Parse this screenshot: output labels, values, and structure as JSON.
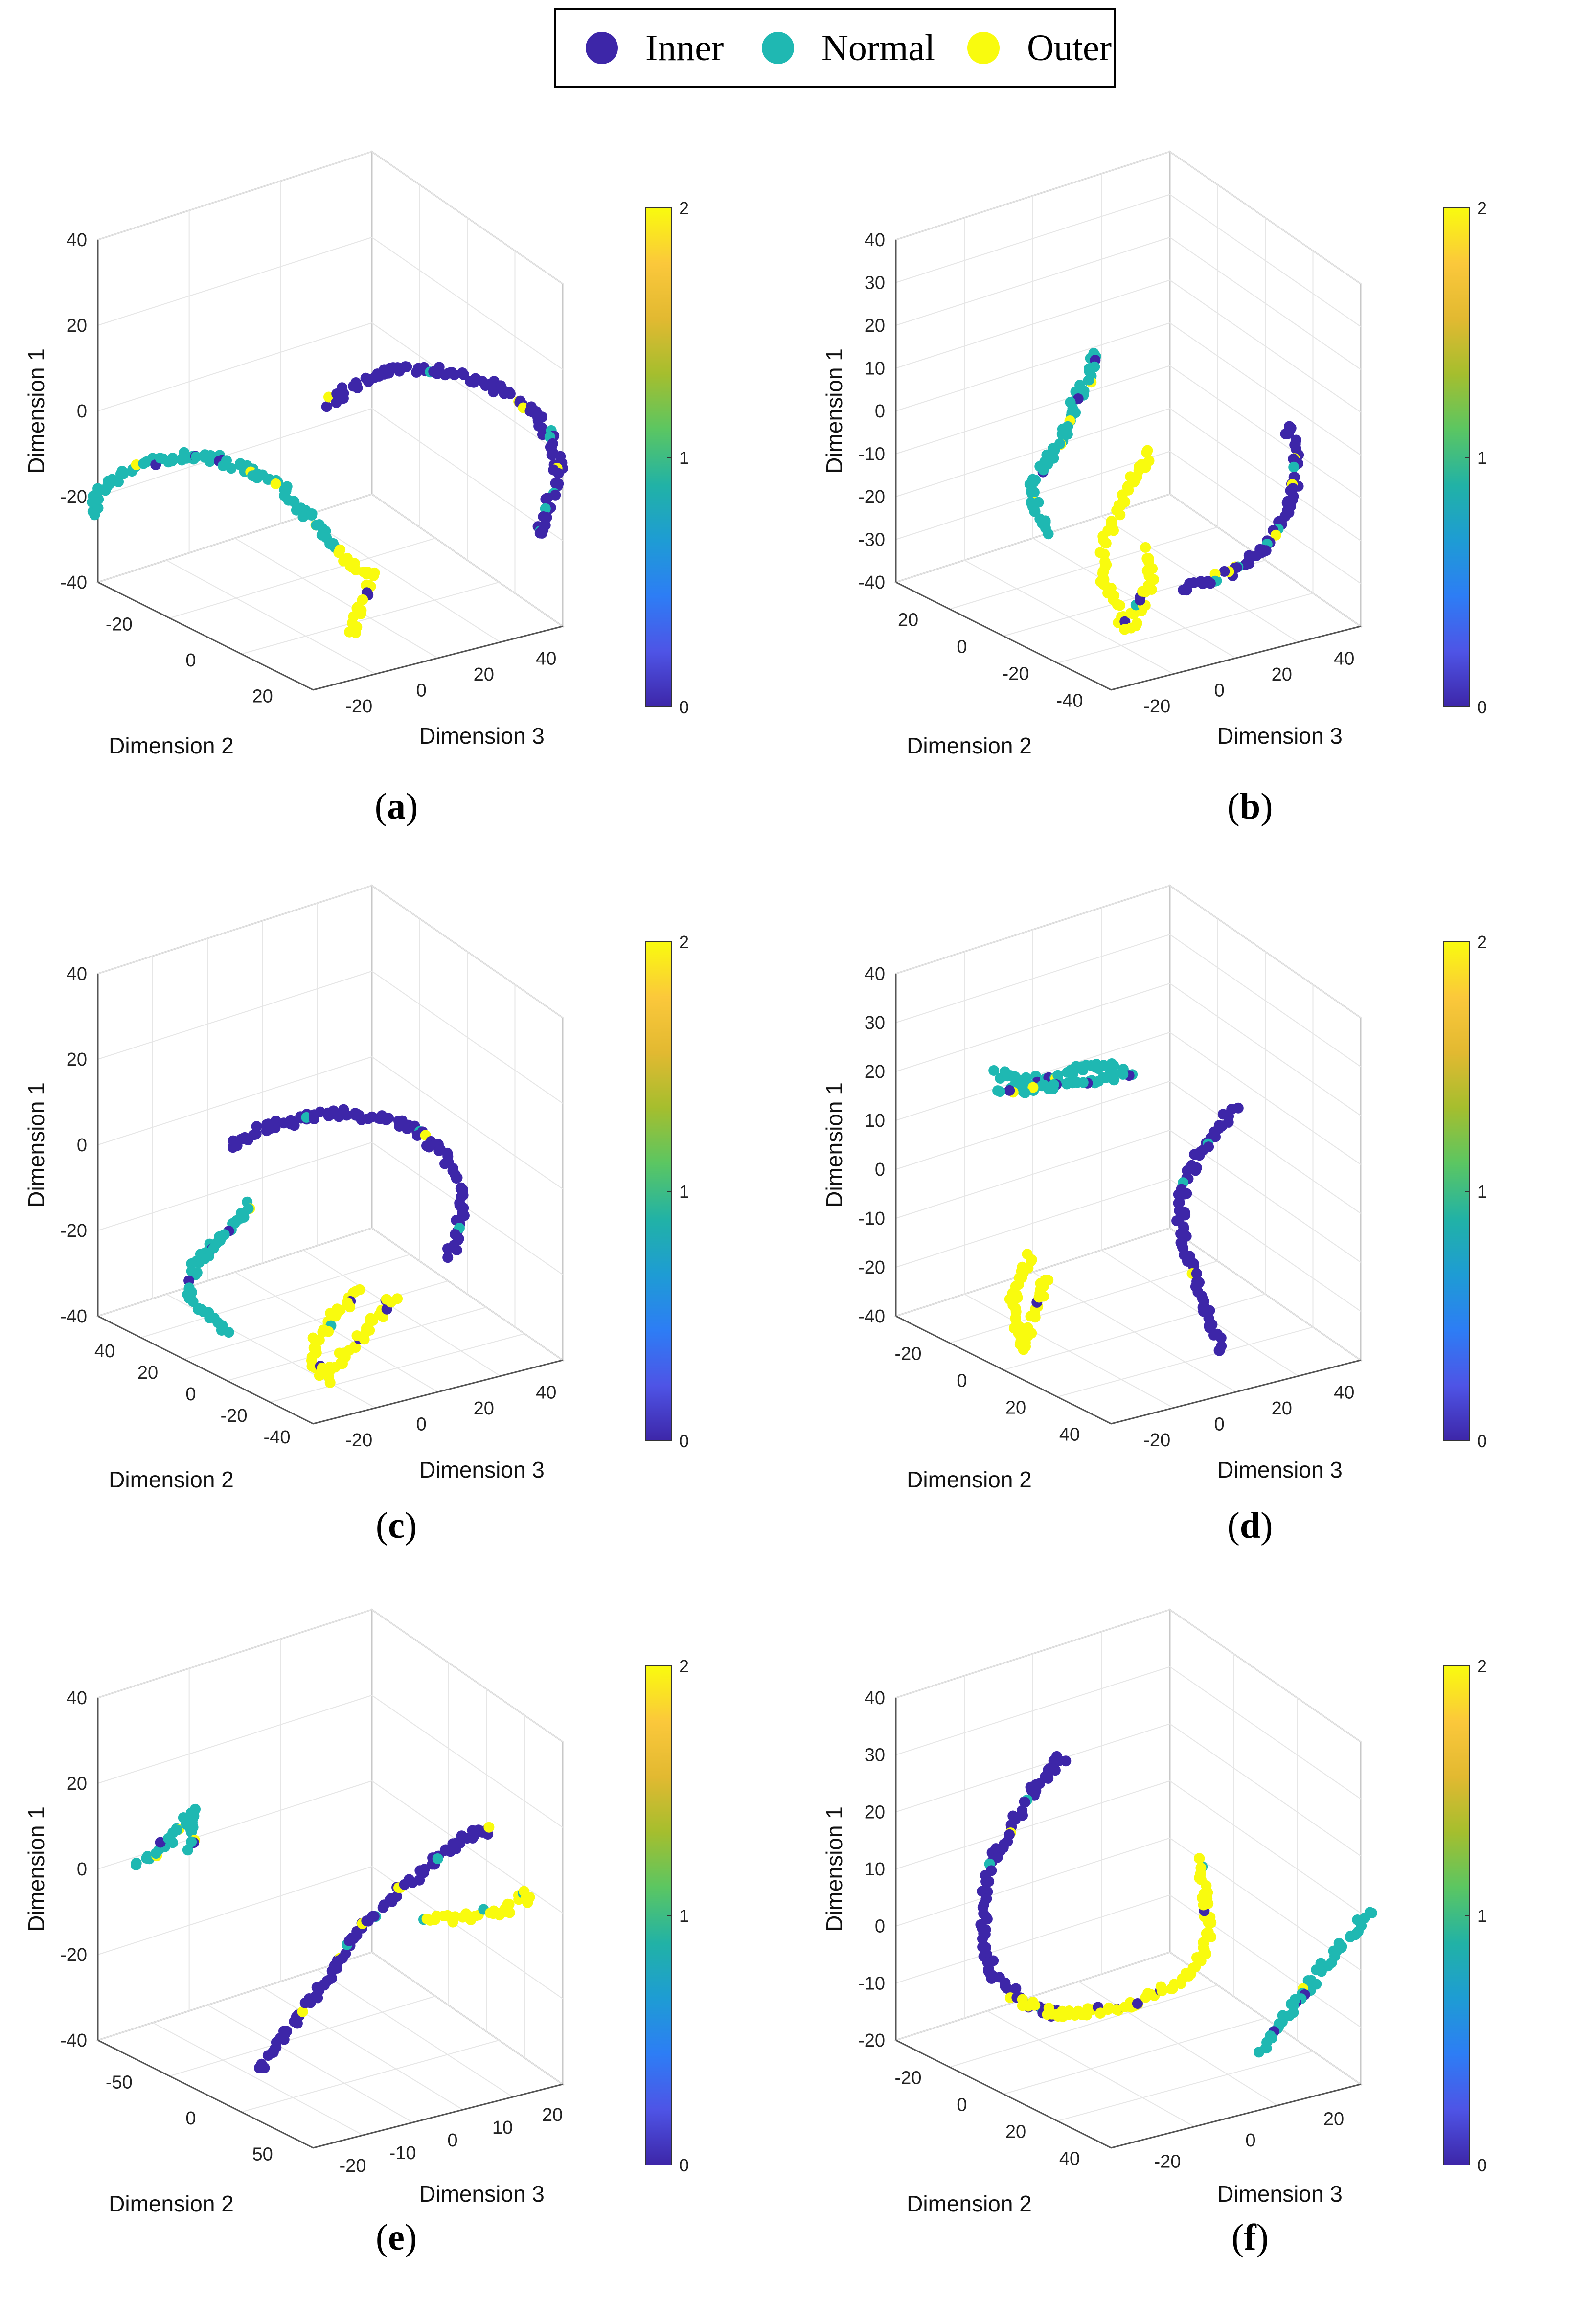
{
  "legend": {
    "items": [
      {
        "label": "Inner",
        "color": "#3d26a8"
      },
      {
        "label": "Normal",
        "color": "#1fb8b2"
      },
      {
        "label": "Outer",
        "color": "#f9fb0e"
      }
    ]
  },
  "colors": {
    "inner": "#3d26a8",
    "normal": "#1fb8b2",
    "outer": "#f9fb0e",
    "grid": "#e6e6e6",
    "axis": "#555555"
  },
  "chart_data": [
    {
      "id": "a",
      "caption_letter": "a",
      "type": "scatter",
      "xlabel": "Dimension 2",
      "ylabel": "Dimension 3",
      "zlabel": "Dimension 1",
      "xticks": [
        "-20",
        "0",
        "20"
      ],
      "yticks": [
        "-20",
        "0",
        "20",
        "40"
      ],
      "zticks": [
        "40",
        "20",
        "0",
        "-20",
        "-40"
      ],
      "colorbar": {
        "ticks": [
          "2",
          "1",
          "0"
        ],
        "range": [
          0,
          2
        ]
      },
      "series": [
        {
          "name": "Inner",
          "class": 0,
          "points": [
            [
              0.0,
              0.36
            ],
            [
              0.03,
              0.33
            ],
            [
              0.1,
              0.29
            ],
            [
              0.18,
              0.27
            ],
            [
              0.26,
              0.28
            ],
            [
              0.33,
              0.3
            ],
            [
              0.4,
              0.33
            ],
            [
              0.46,
              0.38
            ],
            [
              0.5,
              0.44
            ],
            [
              0.52,
              0.51
            ],
            [
              0.51,
              0.57
            ],
            [
              0.49,
              0.63
            ],
            [
              0.47,
              0.7
            ]
          ]
        },
        {
          "name": "Normal",
          "class": 1,
          "points": [
            [
              -0.54,
              0.63
            ],
            [
              -0.53,
              0.59
            ],
            [
              -0.48,
              0.54
            ],
            [
              -0.42,
              0.51
            ],
            [
              -0.34,
              0.49
            ],
            [
              -0.25,
              0.5
            ],
            [
              -0.17,
              0.53
            ],
            [
              -0.1,
              0.58
            ],
            [
              -0.05,
              0.64
            ],
            [
              -0.01,
              0.7
            ],
            [
              0.02,
              0.73
            ]
          ]
        },
        {
          "name": "Outer",
          "class": 2,
          "points": [
            [
              0.02,
              0.72
            ],
            [
              0.04,
              0.75
            ],
            [
              0.07,
              0.78
            ],
            [
              0.1,
              0.79
            ],
            [
              0.08,
              0.84
            ],
            [
              0.06,
              0.89
            ],
            [
              0.05,
              0.95
            ]
          ]
        }
      ]
    },
    {
      "id": "b",
      "caption_letter": "b",
      "type": "scatter",
      "xlabel": "Dimension 2",
      "ylabel": "Dimension 3",
      "zlabel": "Dimension 1",
      "xticks": [
        "20",
        "0",
        "-20",
        "-40"
      ],
      "yticks": [
        "-20",
        "0",
        "20",
        "40"
      ],
      "zticks": [
        "40",
        "30",
        "20",
        "10",
        "0",
        "-10",
        "-20",
        "-30",
        "-40"
      ],
      "colorbar": {
        "ticks": [
          "2",
          "1",
          "0"
        ],
        "range": [
          0,
          2
        ]
      },
      "series": [
        {
          "name": "Normal",
          "class": 1,
          "points": [
            [
              -0.08,
              0.23
            ],
            [
              -0.08,
              0.28
            ],
            [
              -0.12,
              0.35
            ],
            [
              -0.14,
              0.42
            ],
            [
              -0.18,
              0.5
            ],
            [
              -0.22,
              0.57
            ],
            [
              -0.21,
              0.63
            ],
            [
              -0.17,
              0.68
            ]
          ]
        },
        {
          "name": "Outer",
          "class": 2,
          "points": [
            [
              0.05,
              0.48
            ],
            [
              0.01,
              0.55
            ],
            [
              -0.02,
              0.62
            ],
            [
              -0.05,
              0.7
            ],
            [
              -0.06,
              0.77
            ],
            [
              -0.04,
              0.84
            ],
            [
              -0.02,
              0.89
            ],
            [
              0.0,
              0.92
            ],
            [
              0.03,
              0.86
            ],
            [
              0.05,
              0.79
            ],
            [
              0.04,
              0.72
            ]
          ]
        },
        {
          "name": "Inner",
          "class": 0,
          "points": [
            [
              0.36,
              0.41
            ],
            [
              0.38,
              0.48
            ],
            [
              0.38,
              0.55
            ],
            [
              0.36,
              0.62
            ],
            [
              0.33,
              0.69
            ],
            [
              0.29,
              0.74
            ],
            [
              0.23,
              0.78
            ],
            [
              0.17,
              0.81
            ],
            [
              0.12,
              0.83
            ]
          ]
        }
      ]
    },
    {
      "id": "c",
      "caption_letter": "c",
      "type": "scatter",
      "xlabel": "Dimension 2",
      "ylabel": "Dimension 3",
      "zlabel": "Dimension 1",
      "xticks": [
        "40",
        "20",
        "0",
        "-20",
        "-40"
      ],
      "yticks": [
        "-20",
        "0",
        "20",
        "40"
      ],
      "zticks": [
        "40",
        "20",
        "0",
        "-20",
        "-40"
      ],
      "colorbar": {
        "ticks": [
          "2",
          "1",
          "0"
        ],
        "range": [
          0,
          2
        ]
      },
      "series": [
        {
          "name": "Inner",
          "class": 0,
          "points": [
            [
              -0.22,
              0.38
            ],
            [
              -0.16,
              0.34
            ],
            [
              -0.06,
              0.31
            ],
            [
              0.04,
              0.3
            ],
            [
              0.12,
              0.31
            ],
            [
              0.19,
              0.34
            ],
            [
              0.25,
              0.39
            ],
            [
              0.29,
              0.46
            ],
            [
              0.3,
              0.53
            ],
            [
              0.29,
              0.6
            ],
            [
              0.27,
              0.66
            ]
          ]
        },
        {
          "name": "Normal",
          "class": 1,
          "points": [
            [
              -0.18,
              0.53
            ],
            [
              -0.22,
              0.58
            ],
            [
              -0.27,
              0.63
            ],
            [
              -0.31,
              0.69
            ],
            [
              -0.32,
              0.75
            ],
            [
              -0.28,
              0.8
            ],
            [
              -0.23,
              0.84
            ]
          ]
        },
        {
          "name": "Outer",
          "class": 2,
          "points": [
            [
              0.06,
              0.74
            ],
            [
              0.03,
              0.78
            ],
            [
              0.0,
              0.82
            ],
            [
              -0.03,
              0.87
            ],
            [
              -0.04,
              0.92
            ],
            [
              -0.01,
              0.96
            ],
            [
              0.15,
              0.75
            ]
          ]
        }
      ]
    },
    {
      "id": "d",
      "caption_letter": "d",
      "type": "scatter",
      "xlabel": "Dimension 2",
      "ylabel": "Dimension 3",
      "zlabel": "Dimension 1",
      "xticks": [
        "-20",
        "0",
        "20",
        "40"
      ],
      "yticks": [
        "-20",
        "0",
        "20",
        "40"
      ],
      "zticks": [
        "40",
        "30",
        "20",
        "10",
        "0",
        "-10",
        "-20",
        "-40"
      ],
      "colorbar": {
        "ticks": [
          "2",
          "1",
          "0"
        ],
        "range": [
          0,
          2
        ]
      },
      "series": [
        {
          "name": "Normal",
          "class": 1,
          "points": [
            [
              -0.3,
              0.2
            ],
            [
              -0.24,
              0.22
            ],
            [
              -0.18,
              0.21
            ],
            [
              -0.12,
              0.19
            ],
            [
              -0.06,
              0.18
            ],
            [
              0.0,
              0.2
            ],
            [
              -0.3,
              0.25
            ]
          ]
        },
        {
          "name": "Inner",
          "class": 0,
          "points": [
            [
              0.24,
              0.29
            ],
            [
              0.19,
              0.36
            ],
            [
              0.14,
              0.44
            ],
            [
              0.12,
              0.52
            ],
            [
              0.12,
              0.6
            ],
            [
              0.14,
              0.68
            ],
            [
              0.17,
              0.76
            ],
            [
              0.19,
              0.83
            ],
            [
              0.21,
              0.9
            ]
          ]
        },
        {
          "name": "Outer",
          "class": 2,
          "points": [
            [
              -0.22,
              0.66
            ],
            [
              -0.25,
              0.71
            ],
            [
              -0.26,
              0.77
            ],
            [
              -0.25,
              0.83
            ],
            [
              -0.24,
              0.88
            ],
            [
              -0.18,
              0.7
            ]
          ]
        }
      ]
    },
    {
      "id": "e",
      "caption_letter": "e",
      "type": "scatter",
      "xlabel": "Dimension 2",
      "ylabel": "Dimension 3",
      "zlabel": "Dimension 1",
      "xticks": [
        "-50",
        "0",
        "50"
      ],
      "yticks": [
        "-20",
        "-10",
        "0",
        "10",
        "20"
      ],
      "zticks": [
        "40",
        "20",
        "0",
        "-20",
        "-40"
      ],
      "colorbar": {
        "ticks": [
          "2",
          "1",
          "0"
        ],
        "range": [
          0,
          2
        ]
      },
      "series": [
        {
          "name": "Normal",
          "class": 1,
          "points": [
            [
              -0.44,
              0.37
            ],
            [
              -0.4,
              0.34
            ],
            [
              -0.36,
              0.3
            ],
            [
              -0.33,
              0.26
            ],
            [
              -0.31,
              0.23
            ],
            [
              -0.32,
              0.33
            ]
          ]
        },
        {
          "name": "Inner",
          "class": 0,
          "points": [
            [
              -0.16,
              0.87
            ],
            [
              -0.11,
              0.8
            ],
            [
              -0.05,
              0.71
            ],
            [
              0.01,
              0.62
            ],
            [
              0.07,
              0.53
            ],
            [
              0.14,
              0.45
            ],
            [
              0.21,
              0.38
            ],
            [
              0.27,
              0.33
            ],
            [
              0.32,
              0.29
            ],
            [
              0.37,
              0.28
            ]
          ]
        },
        {
          "name": "Outer",
          "class": 2,
          "points": [
            [
              0.21,
              0.5
            ],
            [
              0.28,
              0.5
            ],
            [
              0.34,
              0.49
            ],
            [
              0.4,
              0.48
            ],
            [
              0.44,
              0.43
            ],
            [
              0.46,
              0.48
            ]
          ]
        }
      ]
    },
    {
      "id": "f",
      "caption_letter": "f",
      "type": "scatter",
      "xlabel": "Dimension 2",
      "ylabel": "Dimension 3",
      "zlabel": "Dimension 1",
      "xticks": [
        "-20",
        "0",
        "20",
        "40"
      ],
      "yticks": [
        "-20",
        "0",
        "20"
      ],
      "zticks": [
        "40",
        "30",
        "20",
        "10",
        "0",
        "-10",
        "-20"
      ],
      "colorbar": {
        "ticks": [
          "2",
          "1",
          "0"
        ],
        "range": [
          0,
          2
        ]
      },
      "series": [
        {
          "name": "Inner",
          "class": 0,
          "points": [
            [
              -0.15,
              0.1
            ],
            [
              -0.2,
              0.16
            ],
            [
              -0.25,
              0.24
            ],
            [
              -0.3,
              0.34
            ],
            [
              -0.33,
              0.45
            ],
            [
              -0.33,
              0.56
            ],
            [
              -0.3,
              0.65
            ],
            [
              -0.24,
              0.71
            ],
            [
              -0.16,
              0.74
            ]
          ]
        },
        {
          "name": "Outer",
          "class": 2,
          "points": [
            [
              -0.24,
              0.71
            ],
            [
              -0.16,
              0.74
            ],
            [
              -0.07,
              0.73
            ],
            [
              0.02,
              0.71
            ],
            [
              0.1,
              0.67
            ],
            [
              0.16,
              0.61
            ],
            [
              0.18,
              0.54
            ],
            [
              0.18,
              0.47
            ],
            [
              0.17,
              0.4
            ],
            [
              0.17,
              0.34
            ]
          ]
        },
        {
          "name": "Normal",
          "class": 1,
          "points": [
            [
              0.55,
              0.49
            ],
            [
              0.49,
              0.56
            ],
            [
              0.44,
              0.63
            ],
            [
              0.39,
              0.7
            ],
            [
              0.34,
              0.77
            ],
            [
              0.3,
              0.84
            ]
          ]
        }
      ]
    }
  ]
}
